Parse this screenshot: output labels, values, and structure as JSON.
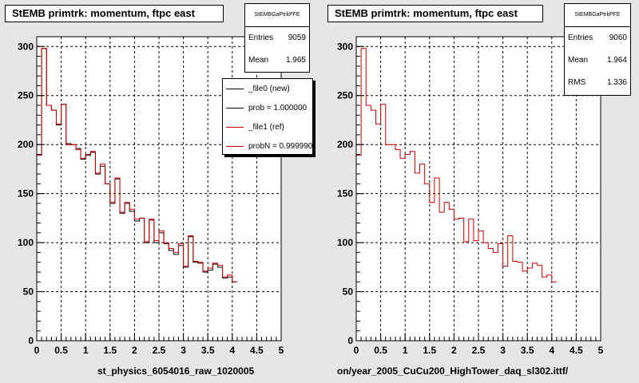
{
  "colors": {
    "new": "#000000",
    "ref": "#cc0000",
    "pad": "#e6e6e6",
    "frame": "#ffffff"
  },
  "footer_text": "",
  "panels": [
    {
      "title": "StEMB primtrk: momentum, ftpc east",
      "x_axis_title": "st_physics_6054016_raw_1020005",
      "stats": {
        "name": "StEMBGaPtrkPFE",
        "rows": [
          {
            "label": "Entries",
            "value": "9059"
          },
          {
            "label": "Mean",
            "value": "1.965"
          }
        ]
      },
      "legend": [
        {
          "label": "_file0 (new)",
          "color_key": "new"
        },
        {
          "label": "prob = 1.000000",
          "color_key": "new"
        },
        {
          "label": "_file1 (ref)",
          "color_key": "ref"
        },
        {
          "label": "probN = 0.999990",
          "color_key": "ref"
        }
      ]
    },
    {
      "title": "StEMB primtrk: momentum, ftpc east",
      "x_axis_title": "on/year_2005_CuCu200_HighTower_daq_sl302.ittf/",
      "stats": {
        "name": "StEMBGaPtrkPFE",
        "rows": [
          {
            "label": "Entries",
            "value": "9060"
          },
          {
            "label": "Mean",
            "value": "1.964"
          },
          {
            "label": "RMS",
            "value": "1.336"
          }
        ]
      }
    }
  ],
  "chart_data": [
    {
      "type": "histogram",
      "title": "StEMB primtrk: momentum, ftpc east",
      "xlabel": "st_physics_6054016_raw_1020005",
      "ylabel": "",
      "xlim": [
        0,
        5
      ],
      "ylim": [
        0,
        310
      ],
      "x_ticks": [
        "0",
        "0.5",
        "1",
        "1.5",
        "2",
        "2.5",
        "3",
        "3.5",
        "4",
        "4.5",
        "5"
      ],
      "y_ticks": [
        "0",
        "50",
        "100",
        "150",
        "200",
        "250",
        "300"
      ],
      "grid": true,
      "legend_position": "top-right",
      "bin_width": 0.1,
      "series": [
        {
          "name": "_file0 (new)",
          "color": "#000000",
          "values": [
            190,
            298,
            240,
            235,
            220,
            241,
            201,
            200,
            196,
            185,
            189,
            192,
            170,
            178,
            160,
            140,
            165,
            130,
            140,
            132,
            122,
            125,
            100,
            123,
            100,
            110,
            99,
            92,
            88,
            97,
            75,
            106,
            80,
            79,
            70,
            72,
            78,
            75,
            64,
            65,
            60
          ]
        },
        {
          "name": "_file1 (ref)",
          "color": "#cc0000",
          "values": [
            189,
            298,
            240,
            235,
            221,
            241,
            200,
            200,
            195,
            186,
            190,
            193,
            171,
            180,
            160,
            141,
            166,
            131,
            141,
            134,
            124,
            125,
            101,
            124,
            102,
            112,
            100,
            94,
            90,
            99,
            76,
            107,
            81,
            80,
            71,
            74,
            79,
            77,
            65,
            67,
            60
          ]
        }
      ]
    },
    {
      "type": "histogram",
      "title": "StEMB primtrk: momentum, ftpc east",
      "xlabel": "on/year_2005_CuCu200_HighTower_daq_sl302.ittf/",
      "ylabel": "",
      "xlim": [
        0,
        5
      ],
      "ylim": [
        0,
        310
      ],
      "x_ticks": [
        "0",
        "0.5",
        "1",
        "1.5",
        "2",
        "2.5",
        "3",
        "3.5",
        "4",
        "4.5",
        "5"
      ],
      "y_ticks": [
        "0",
        "50",
        "100",
        "150",
        "200",
        "250",
        "300"
      ],
      "grid": true,
      "bin_width": 0.1,
      "series": [
        {
          "name": "",
          "color": "#cc0000",
          "values": [
            189,
            298,
            240,
            235,
            221,
            241,
            200,
            200,
            195,
            186,
            190,
            193,
            171,
            180,
            160,
            141,
            166,
            131,
            141,
            134,
            124,
            125,
            101,
            124,
            102,
            112,
            100,
            94,
            90,
            99,
            76,
            107,
            81,
            80,
            71,
            74,
            79,
            77,
            65,
            67,
            60
          ]
        }
      ]
    }
  ]
}
